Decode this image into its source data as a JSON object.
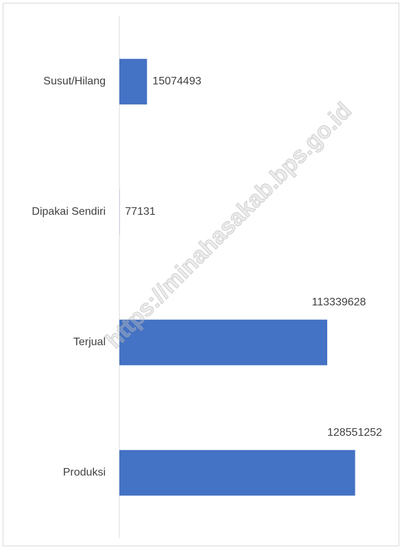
{
  "chart_data": {
    "type": "bar",
    "orientation": "horizontal",
    "categories": [
      "Susut/Hilang",
      "Dipakai Sendiri",
      "Terjual",
      "Produksi"
    ],
    "values": [
      15074493,
      77131,
      113339628,
      128551252
    ],
    "color": "#4472c4",
    "xlim": [
      0,
      150000000
    ],
    "watermark": "https://minahasakab.bps.go.id"
  }
}
